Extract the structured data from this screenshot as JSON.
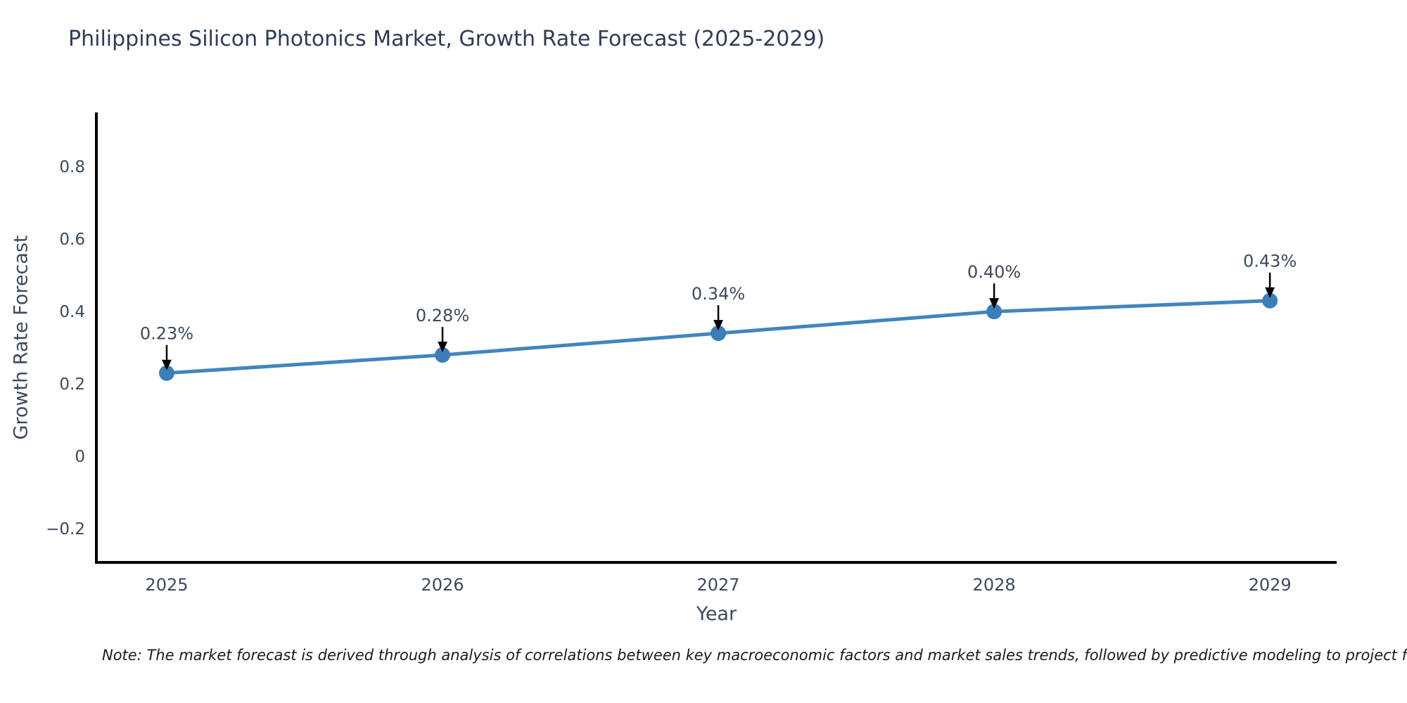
{
  "note": {
    "text": "Note: The market forecast is derived through analysis of correlations between key macroeconomic factors and market sales trends, followed by predictive modeling to project future sales"
  },
  "chart_data": {
    "type": "line",
    "title": "Philippines Silicon Photonics Market, Growth Rate Forecast (2025-2029)",
    "xlabel": "Year",
    "ylabel": "Growth Rate Forecast",
    "x": [
      2025,
      2026,
      2027,
      2028,
      2029
    ],
    "values": [
      0.23,
      0.28,
      0.34,
      0.4,
      0.43
    ],
    "point_labels": [
      "0.23%",
      "0.28%",
      "0.34%",
      "0.40%",
      "0.43%"
    ],
    "series_name": "Growth Rate Forecast",
    "xtick_labels": [
      "2025",
      "2026",
      "2027",
      "2028",
      "2029"
    ],
    "yticks": [
      -0.2,
      0,
      0.2,
      0.4,
      0.6,
      0.8
    ],
    "ytick_labels": [
      "−0.2",
      "0",
      "0.2",
      "0.4",
      "0.6",
      "0.8"
    ],
    "xlim": [
      2024.745,
      2029.242
    ],
    "ylim": [
      -0.293,
      0.95
    ],
    "grid": false,
    "legend": "none",
    "line_color": "#4285be",
    "marker_color": "#3c7eb8",
    "axis_color": "#000000",
    "text_color": "#3b4a5e",
    "annotation_text_color": "#3b4a5e",
    "annotation_arrow_color": "#000000"
  }
}
